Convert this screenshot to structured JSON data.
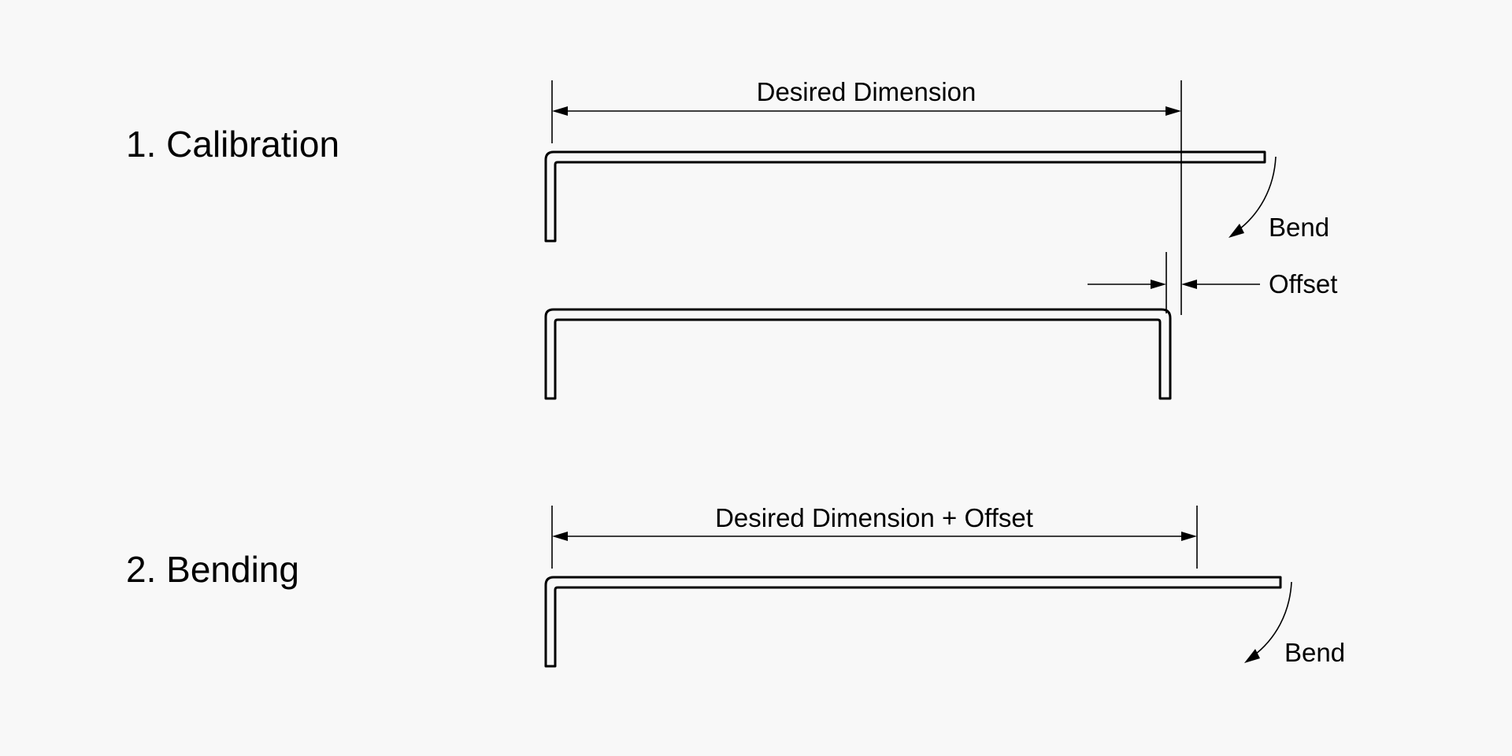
{
  "steps": [
    {
      "title": "1. Calibration",
      "dimension_label": "Desired Dimension",
      "bend_label": "Bend",
      "offset_label": "Offset"
    },
    {
      "title": "2. Bending",
      "dimension_label": "Desired Dimension + Offset",
      "bend_label": "Bend"
    }
  ]
}
